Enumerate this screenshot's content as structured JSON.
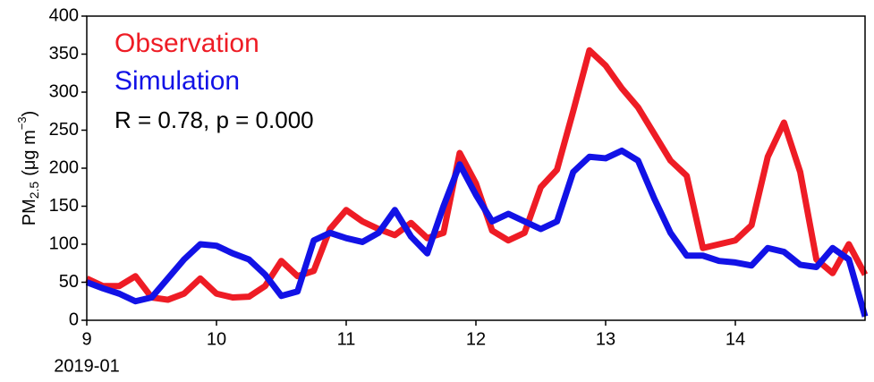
{
  "chart_data": {
    "type": "line",
    "y_label": [
      "PM",
      "2.5",
      "(μg m",
      "−3",
      ")"
    ],
    "x_label": "2019-01",
    "annotation": "R = 0.78, p = 0.000",
    "x": [
      9,
      9.125,
      9.25,
      9.375,
      9.5,
      9.625,
      9.75,
      9.875,
      10,
      10.125,
      10.25,
      10.375,
      10.5,
      10.625,
      10.75,
      10.875,
      11,
      11.125,
      11.25,
      11.375,
      11.5,
      11.625,
      11.75,
      11.875,
      12,
      12.125,
      12.25,
      12.375,
      12.5,
      12.625,
      12.75,
      12.875,
      13,
      13.125,
      13.25,
      13.375,
      13.5,
      13.625,
      13.75,
      13.875,
      14,
      14.125,
      14.25,
      14.375,
      14.5,
      14.625,
      14.75,
      14.875,
      15
    ],
    "series": [
      {
        "name": "Observation",
        "color": "#ee1c25",
        "values": [
          55,
          45,
          45,
          58,
          30,
          27,
          35,
          55,
          35,
          30,
          31,
          45,
          78,
          58,
          65,
          120,
          145,
          130,
          120,
          112,
          128,
          108,
          115,
          220,
          180,
          118,
          105,
          115,
          175,
          198,
          275,
          355,
          335,
          305,
          280,
          245,
          210,
          190,
          95,
          100,
          105,
          125,
          215,
          260,
          195,
          80,
          62,
          100,
          60
        ]
      },
      {
        "name": "Simulation",
        "color": "#1212e6",
        "values": [
          50,
          42,
          35,
          25,
          30,
          55,
          80,
          100,
          98,
          88,
          80,
          60,
          32,
          38,
          105,
          115,
          108,
          103,
          115,
          145,
          110,
          88,
          150,
          205,
          165,
          130,
          140,
          130,
          120,
          130,
          195,
          215,
          213,
          223,
          210,
          160,
          115,
          85,
          85,
          78,
          76,
          72,
          95,
          90,
          73,
          70,
          95,
          80,
          5
        ]
      }
    ],
    "xlim": [
      9,
      15
    ],
    "xticks": [
      9,
      10,
      11,
      12,
      13,
      14
    ],
    "ylim": [
      0,
      400
    ],
    "yticks": [
      0,
      50,
      100,
      150,
      200,
      250,
      300,
      350,
      400
    ]
  }
}
